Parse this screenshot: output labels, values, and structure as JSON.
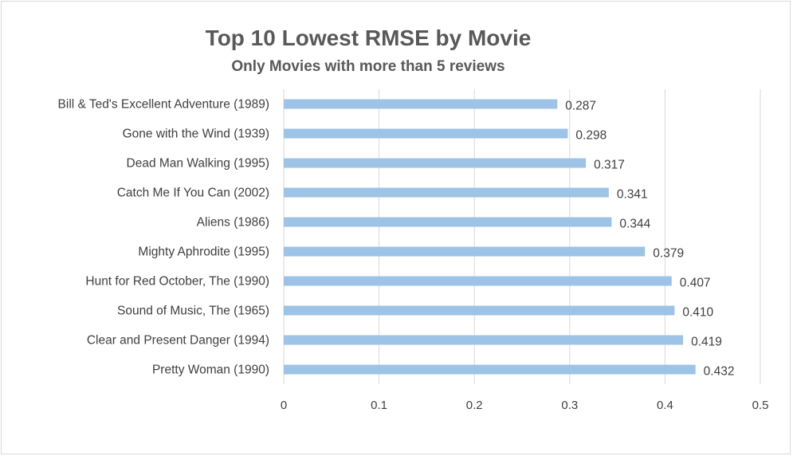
{
  "chart_data": {
    "type": "bar",
    "orientation": "horizontal",
    "title": "Top 10 Lowest RMSE by Movie",
    "subtitle": "Only Movies with more than 5 reviews",
    "categories": [
      "Bill & Ted's Excellent Adventure (1989)",
      "Gone with the Wind (1939)",
      "Dead Man Walking (1995)",
      "Catch Me If You Can (2002)",
      "Aliens (1986)",
      "Mighty Aphrodite (1995)",
      "Hunt for Red October, The (1990)",
      "Sound of Music, The (1965)",
      "Clear and Present Danger (1994)",
      "Pretty Woman (1990)"
    ],
    "values": [
      0.287,
      0.298,
      0.317,
      0.341,
      0.344,
      0.379,
      0.407,
      0.41,
      0.419,
      0.432
    ],
    "data_labels": [
      "0.287",
      "0.298",
      "0.317",
      "0.341",
      "0.344",
      "0.379",
      "0.407",
      "0.410",
      "0.419",
      "0.432"
    ],
    "x_ticks": [
      "0",
      "0.1",
      "0.2",
      "0.3",
      "0.4",
      "0.5"
    ],
    "xlim": [
      0,
      0.5
    ],
    "grid": true,
    "legend": "none",
    "xlabel": "",
    "ylabel": "",
    "colors": {
      "bar": "#9dc3e6",
      "grid": "#d9d9d9",
      "text": "#404040",
      "title": "#595959"
    }
  }
}
